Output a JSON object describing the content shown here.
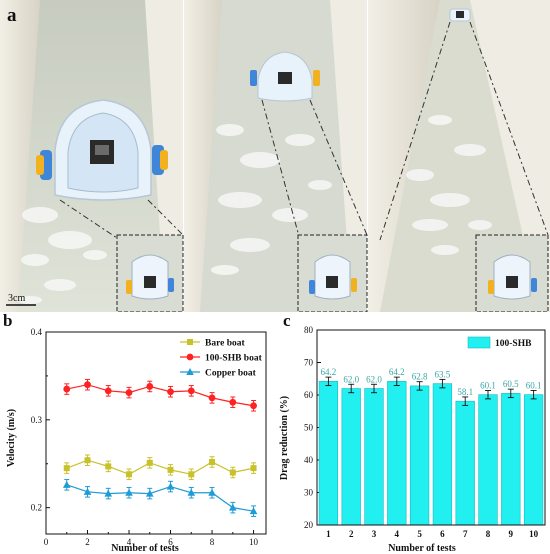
{
  "panel_a": {
    "label": "a",
    "scale_bar": "3cm"
  },
  "colors": {
    "bare_boat": "#c9c12a",
    "shb_boat": "#ff2222",
    "copper_boat": "#1f9bd6",
    "bar_fill": "#22f0f0",
    "bar_label": "#3aa6a6",
    "water": "#d9ddd0",
    "wall": "#ece7dc"
  },
  "chart_data": [
    {
      "panel_label": "b",
      "type": "line",
      "xlabel": "Number of tests",
      "ylabel": "Velocity (m/s)",
      "x": [
        1,
        2,
        3,
        4,
        5,
        6,
        7,
        8,
        9,
        10
      ],
      "xticks": [
        "0",
        "2",
        "4",
        "6",
        "8",
        "10"
      ],
      "xlim": [
        0,
        10.6
      ],
      "ylim": [
        0.17,
        0.4
      ],
      "yticks": [
        "0.2",
        "0.3",
        "0.4"
      ],
      "legend_position": "top-right",
      "series": [
        {
          "name": "Bare boat",
          "marker": "square",
          "color_key": "bare_boat",
          "values": [
            0.245,
            0.254,
            0.247,
            0.238,
            0.251,
            0.243,
            0.238,
            0.252,
            0.24,
            0.245
          ]
        },
        {
          "name": "100-SHB boat",
          "marker": "circle",
          "color_key": "shb_boat",
          "values": [
            0.335,
            0.34,
            0.333,
            0.331,
            0.338,
            0.332,
            0.333,
            0.325,
            0.32,
            0.316
          ]
        },
        {
          "name": "Copper boat",
          "marker": "triangle",
          "color_key": "copper_boat",
          "values": [
            0.226,
            0.218,
            0.216,
            0.217,
            0.216,
            0.224,
            0.217,
            0.217,
            0.2,
            0.196
          ]
        }
      ]
    },
    {
      "panel_label": "c",
      "type": "bar",
      "xlabel": "Number of tests",
      "ylabel": "Drag reduction (%)",
      "categories": [
        "1",
        "2",
        "3",
        "4",
        "5",
        "6",
        "7",
        "8",
        "9",
        "10"
      ],
      "ylim": [
        20,
        80
      ],
      "yticks": [
        "20",
        "30",
        "40",
        "50",
        "60",
        "70",
        "80"
      ],
      "legend_position": "top-right",
      "series": [
        {
          "name": "100-SHB",
          "values": [
            64.2,
            62.0,
            62.0,
            64.2,
            62.8,
            63.5,
            58.1,
            60.1,
            60.5,
            60.1
          ],
          "labels": [
            "64.2",
            "62.0",
            "62.0",
            "64.2",
            "62.8",
            "63.5",
            "58.1",
            "60.1",
            "60.5",
            "60.1"
          ]
        }
      ]
    }
  ]
}
